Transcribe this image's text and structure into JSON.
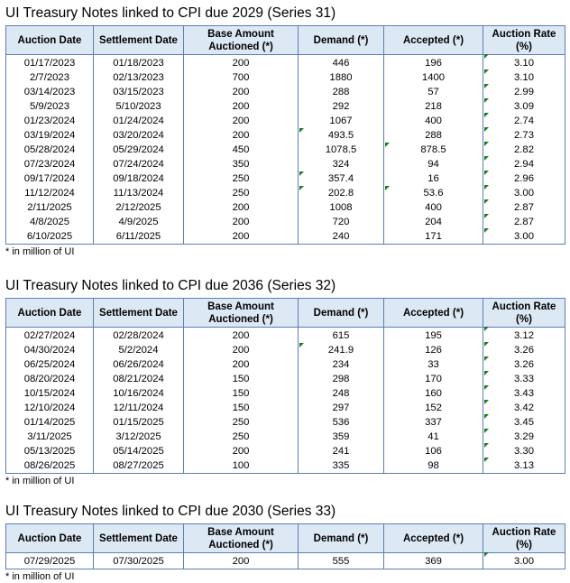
{
  "footnote": "* in million of UI",
  "headers": [
    "Auction Date",
    "Settlement Date",
    "Base Amount Auctioned (*)",
    "Demand (*)",
    "Accepted (*)",
    "Auction Rate (%)"
  ],
  "sections": [
    {
      "title": "UI Treasury Notes linked to CPI due 2029 (Series 31)",
      "rows": [
        [
          "01/17/2023",
          "01/18/2023",
          "200",
          "446",
          "196",
          "3.10"
        ],
        [
          "2/7/2023",
          "02/13/2023",
          "700",
          "1880",
          "1400",
          "3.10"
        ],
        [
          "03/14/2023",
          "03/15/2023",
          "200",
          "288",
          "57",
          "2.99"
        ],
        [
          "5/9/2023",
          "5/10/2023",
          "200",
          "292",
          "218",
          "3.09"
        ],
        [
          "01/23/2024",
          "01/24/2024",
          "200",
          "1067",
          "400",
          "2.74"
        ],
        [
          "03/19/2024",
          "03/20/2024",
          "200",
          "493.5",
          "288",
          "2.73"
        ],
        [
          "05/28/2024",
          "05/29/2024",
          "450",
          "1078.5",
          "878.5",
          "2.82"
        ],
        [
          "07/23/2024",
          "07/24/2024",
          "350",
          "324",
          "94",
          "2.94"
        ],
        [
          "09/17/2024",
          "09/18/2024",
          "250",
          "357.4",
          "16",
          "2.96"
        ],
        [
          "11/12/2024",
          "11/13/2024",
          "250",
          "202.8",
          "53.6",
          "3.00"
        ],
        [
          "2/11/2025",
          "2/12/2025",
          "200",
          "1008",
          "400",
          "2.87"
        ],
        [
          "4/8/2025",
          "4/9/2025",
          "200",
          "720",
          "204",
          "2.87"
        ],
        [
          "6/10/2025",
          "6/11/2025",
          "200",
          "240",
          "171",
          "3.00"
        ]
      ]
    },
    {
      "title": "UI Treasury Notes linked to CPI due 2036 (Series 32)",
      "rows": [
        [
          "02/27/2024",
          "02/28/2024",
          "200",
          "615",
          "195",
          "3.12"
        ],
        [
          "04/30/2024",
          "5/2/2024",
          "200",
          "241.9",
          "126",
          "3.26"
        ],
        [
          "06/25/2024",
          "06/26/2024",
          "200",
          "234",
          "33",
          "3.26"
        ],
        [
          "08/20/2024",
          "08/21/2024",
          "150",
          "298",
          "170",
          "3.33"
        ],
        [
          "10/15/2024",
          "10/16/2024",
          "150",
          "248",
          "160",
          "3.43"
        ],
        [
          "12/10/2024",
          "12/11/2024",
          "150",
          "297",
          "152",
          "3.42"
        ],
        [
          "01/14/2025",
          "01/15/2025",
          "250",
          "536",
          "337",
          "3.45"
        ],
        [
          "3/11/2025",
          "3/12/2025",
          "250",
          "359",
          "41",
          "3.29"
        ],
        [
          "05/13/2025",
          "05/14/2025",
          "200",
          "241",
          "106",
          "3.30"
        ],
        [
          "08/26/2025",
          "08/27/2025",
          "100",
          "335",
          "98",
          "3.13"
        ]
      ]
    },
    {
      "title": "UI Treasury Notes linked to CPI due 2030 (Series 33)",
      "rows": [
        [
          "07/29/2025",
          "07/30/2025",
          "200",
          "555",
          "369",
          "3.00"
        ]
      ]
    }
  ],
  "flag_color": "#1a7a1a"
}
